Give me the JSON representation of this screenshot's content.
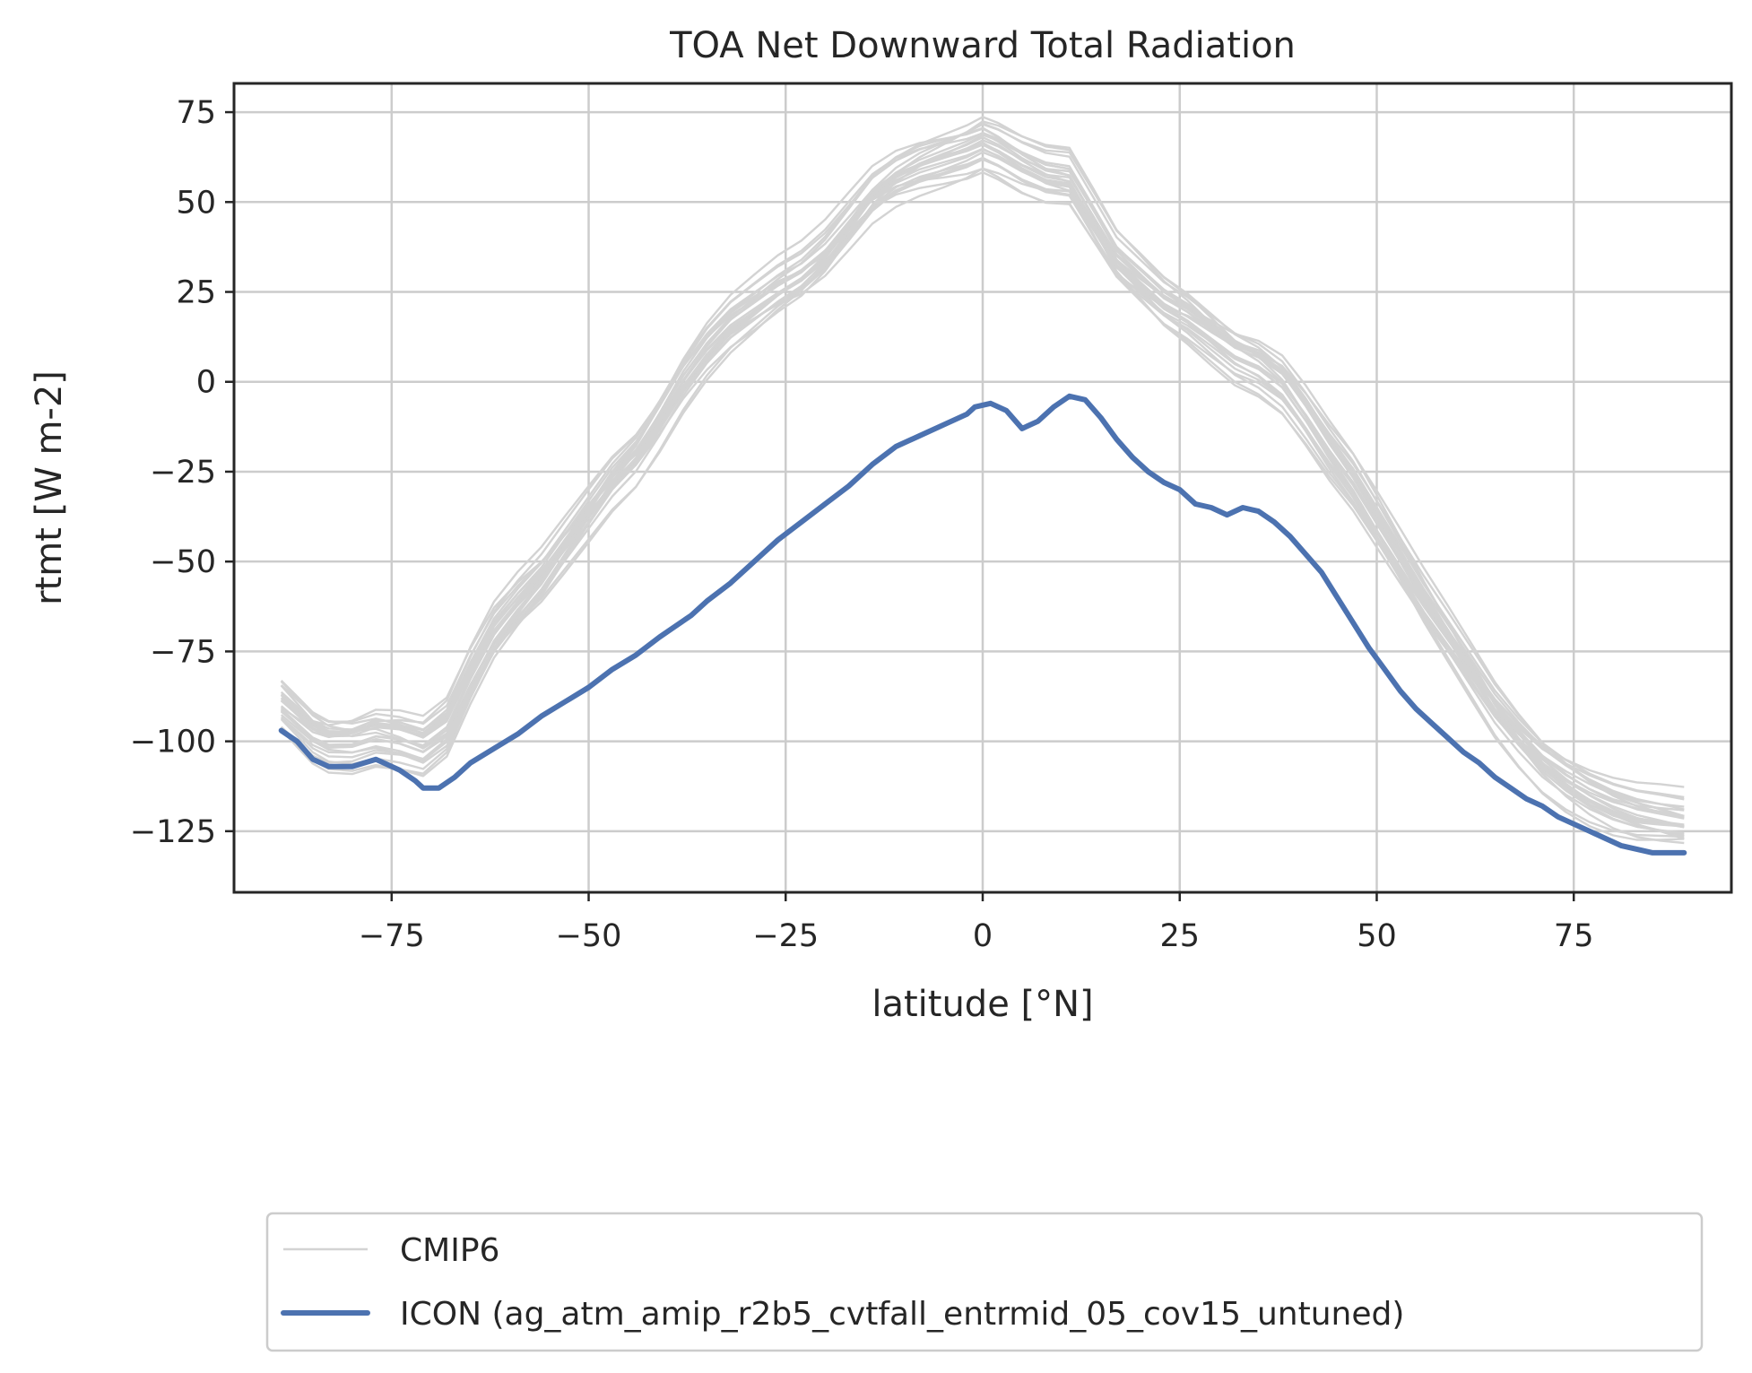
{
  "chart_data": {
    "type": "line",
    "title": "TOA Net Downward Total Radiation",
    "xlabel": "latitude [°N]",
    "ylabel": "rtmt [W m-2]",
    "xlim": [
      -95,
      95
    ],
    "ylim": [
      -142,
      83
    ],
    "xticks": [
      -75,
      -50,
      -25,
      0,
      25,
      50,
      75
    ],
    "yticks": [
      75,
      50,
      25,
      0,
      -25,
      -50,
      -75,
      -100,
      -125
    ],
    "xtick_labels": [
      "−75",
      "−50",
      "−25",
      "0",
      "25",
      "50",
      "75"
    ],
    "ytick_labels": [
      "75",
      "50",
      "25",
      "0",
      "−25",
      "−50",
      "−75",
      "−100",
      "−125"
    ],
    "grid": true,
    "legend_position": "below",
    "series": [
      {
        "name": "CMIP6",
        "color": "#d3d3d3",
        "x": [
          -89,
          -87,
          -85,
          -83,
          -80,
          -77,
          -74,
          -71,
          -68,
          -65,
          -62,
          -59,
          -56,
          -53,
          -50,
          -47,
          -44,
          -41,
          -38,
          -35,
          -32,
          -29,
          -26,
          -23,
          -20,
          -17,
          -14,
          -11,
          -8,
          -5,
          -2,
          0,
          2,
          5,
          8,
          11,
          14,
          17,
          20,
          23,
          26,
          29,
          32,
          35,
          38,
          41,
          44,
          47,
          50,
          53,
          56,
          59,
          62,
          65,
          68,
          71,
          74,
          77,
          80,
          83,
          86,
          89
        ],
        "values": [
          -90,
          -94,
          -98,
          -100,
          -100,
          -98,
          -99,
          -101,
          -96,
          -82,
          -70,
          -62,
          -55,
          -46,
          -37,
          -28,
          -21,
          -11,
          0,
          9,
          16,
          21,
          26,
          30,
          36,
          44,
          52,
          57,
          60,
          62,
          64,
          66,
          64,
          60,
          57,
          56,
          45,
          34,
          28,
          22,
          18,
          13,
          8,
          5,
          0,
          -9,
          -19,
          -28,
          -39,
          -50,
          -61,
          -71,
          -81,
          -91,
          -99,
          -106,
          -111,
          -115,
          -118,
          -120,
          -121,
          -122
        ]
      },
      {
        "name": "ICON (ag_atm_amip_r2b5_cvtfall_entrmid_05_cov15_untuned)",
        "color": "#4c72b0",
        "x": [
          -89,
          -87,
          -85,
          -83,
          -80,
          -77,
          -74,
          -72,
          -71,
          -69,
          -67,
          -65,
          -62,
          -59,
          -56,
          -53,
          -50,
          -47,
          -44,
          -41,
          -39,
          -37,
          -35,
          -32,
          -29,
          -26,
          -23,
          -20,
          -17,
          -14,
          -11,
          -8,
          -5,
          -2,
          -1,
          1,
          3,
          5,
          7,
          9,
          11,
          13,
          15,
          17,
          19,
          21,
          23,
          25,
          27,
          29,
          31,
          33,
          35,
          37,
          39,
          41,
          43,
          45,
          47,
          49,
          51,
          53,
          55,
          57,
          59,
          61,
          63,
          65,
          67,
          69,
          71,
          73,
          75,
          77,
          79,
          81,
          83,
          85,
          87,
          89
        ],
        "values": [
          -97,
          -100,
          -105,
          -107,
          -107,
          -105,
          -108,
          -111,
          -113,
          -113,
          -110,
          -106,
          -102,
          -98,
          -93,
          -89,
          -85,
          -80,
          -76,
          -71,
          -68,
          -65,
          -61,
          -56,
          -50,
          -44,
          -39,
          -34,
          -29,
          -23,
          -18,
          -15,
          -12,
          -9,
          -7,
          -6,
          -8,
          -13,
          -11,
          -7,
          -4,
          -5,
          -10,
          -16,
          -21,
          -25,
          -28,
          -30,
          -34,
          -35,
          -37,
          -35,
          -36,
          -39,
          -43,
          -48,
          -53,
          -60,
          -67,
          -74,
          -80,
          -86,
          -91,
          -95,
          -99,
          -103,
          -106,
          -110,
          -113,
          -116,
          -118,
          -121,
          -123,
          -125,
          -127,
          -129,
          -130,
          -131,
          -131,
          -131
        ]
      }
    ]
  }
}
